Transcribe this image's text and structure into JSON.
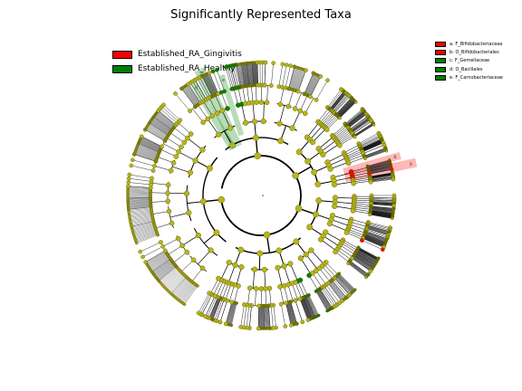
{
  "title": "Significantly Represented Taxa",
  "colors": {
    "gingivitis": "#ff0000",
    "healthy": "#008000",
    "neutral_node": "#b5b51b",
    "edge": "#000000"
  },
  "class_legend": [
    {
      "label": "Established_RA_Gingivitis",
      "color": "#ff0000"
    },
    {
      "label": "Established_RA_Healthy",
      "color": "#008000"
    }
  ],
  "clade_legend": [
    {
      "label": "a: F_Bifidobacteriaceae",
      "color": "#ff0000"
    },
    {
      "label": "b: O_Bifidobacteriales",
      "color": "#ff0000"
    },
    {
      "label": "c: F_Gemellaceae",
      "color": "#008000"
    },
    {
      "label": "d: O_Bacillales",
      "color": "#008000"
    },
    {
      "label": "e: F_Carnobacteriaceae",
      "color": "#008000"
    }
  ],
  "clade_labels": [
    "a",
    "b",
    "c",
    "d",
    "e"
  ]
}
